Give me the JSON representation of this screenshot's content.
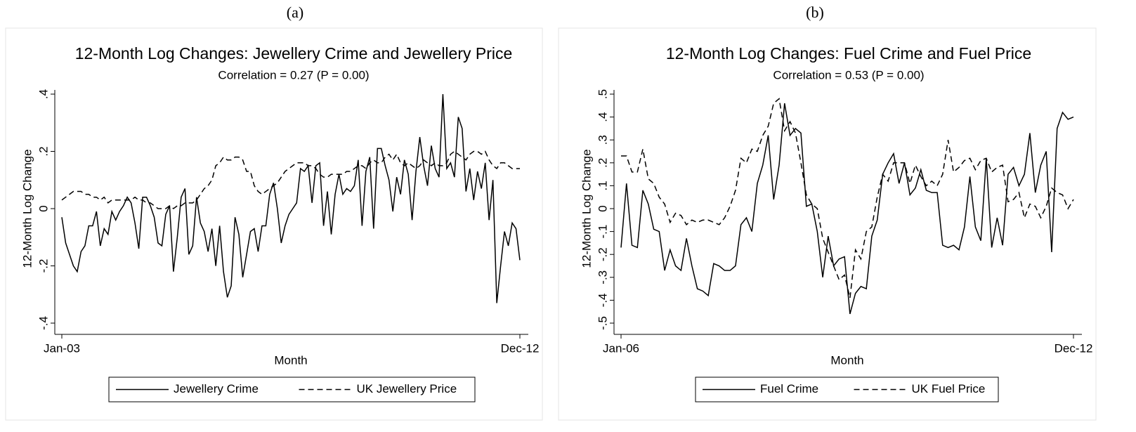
{
  "chart_data": [
    {
      "type": "line",
      "panel_label": "(a)",
      "title": "12-Month Log Changes: Jewellery Crime and Jewellery Price",
      "subtitle": "Correlation = 0.27 (P = 0.00)",
      "xlabel": "Month",
      "ylabel": "12-Month Log Change",
      "categories": [
        "Jan-03",
        null,
        null,
        null,
        null,
        null,
        null,
        null,
        null,
        null,
        null,
        null,
        null,
        null,
        null,
        null,
        null,
        null,
        null,
        null,
        null,
        null,
        null,
        null,
        null,
        null,
        null,
        null,
        null,
        null,
        null,
        null,
        null,
        null,
        null,
        null,
        null,
        null,
        null,
        null,
        null,
        null,
        null,
        null,
        null,
        null,
        null,
        null,
        null,
        null,
        null,
        null,
        null,
        null,
        null,
        null,
        null,
        null,
        null,
        null,
        null,
        null,
        null,
        null,
        null,
        null,
        null,
        null,
        null,
        null,
        null,
        null,
        null,
        null,
        null,
        null,
        null,
        null,
        null,
        null,
        null,
        null,
        null,
        null,
        null,
        null,
        null,
        null,
        null,
        null,
        null,
        null,
        null,
        null,
        null,
        null,
        null,
        null,
        null,
        null,
        null,
        null,
        null,
        null,
        null,
        null,
        null,
        null,
        null,
        null,
        null,
        null,
        null,
        null,
        null,
        null,
        null,
        null,
        null,
        "Dec-12"
      ],
      "ylim": [
        -0.4,
        0.4
      ],
      "yticks": [
        {
          "value": -0.4,
          "label": "-.4"
        },
        {
          "value": -0.2,
          "label": "-.2"
        },
        0,
        {
          "value": 0.2,
          "label": ".2"
        },
        {
          "value": 0.4,
          "label": ".4"
        }
      ],
      "grid": false,
      "legend": "bottom",
      "series": [
        {
          "name": "Jewellery Crime",
          "color": "#000000",
          "dash": "solid",
          "values": [
            -0.03,
            -0.12,
            -0.16,
            -0.2,
            -0.22,
            -0.15,
            -0.13,
            -0.06,
            -0.06,
            -0.01,
            -0.13,
            -0.07,
            -0.09,
            -0.01,
            -0.04,
            -0.01,
            0.01,
            0.04,
            0.02,
            -0.05,
            -0.14,
            0.04,
            0.04,
            0.01,
            -0.03,
            -0.12,
            -0.13,
            -0.02,
            0.01,
            -0.22,
            -0.1,
            0.04,
            0.07,
            -0.16,
            -0.13,
            0.04,
            -0.05,
            -0.08,
            -0.15,
            -0.07,
            -0.2,
            -0.06,
            -0.22,
            -0.31,
            -0.27,
            -0.03,
            -0.09,
            -0.24,
            -0.16,
            -0.08,
            -0.07,
            -0.15,
            -0.06,
            -0.06,
            0.05,
            0.09,
            0.0,
            -0.12,
            -0.06,
            -0.02,
            0.0,
            0.02,
            0.14,
            0.13,
            0.15,
            0.02,
            0.15,
            0.16,
            -0.06,
            0.06,
            -0.09,
            0.05,
            0.12,
            0.05,
            0.07,
            0.06,
            0.08,
            0.17,
            -0.06,
            0.13,
            0.18,
            -0.07,
            0.21,
            0.21,
            0.15,
            0.1,
            -0.01,
            0.11,
            0.05,
            0.17,
            0.12,
            -0.04,
            0.13,
            0.25,
            0.15,
            0.08,
            0.22,
            0.14,
            0.11,
            0.4,
            0.14,
            0.16,
            0.11,
            0.32,
            0.28,
            0.06,
            0.14,
            0.03,
            0.13,
            0.07,
            0.16,
            -0.04,
            0.1,
            -0.33,
            -0.2,
            -0.08,
            -0.13,
            -0.05,
            -0.07,
            -0.18
          ]
        },
        {
          "name": "UK Jewellery Price",
          "color": "#000000",
          "dash": "dashed",
          "values": [
            0.03,
            0.04,
            0.05,
            0.06,
            0.06,
            0.06,
            0.05,
            0.05,
            0.04,
            0.04,
            0.03,
            0.04,
            0.02,
            0.03,
            0.03,
            0.03,
            0.03,
            0.03,
            0.03,
            0.04,
            0.03,
            0.03,
            0.02,
            0.02,
            0.01,
            0.0,
            0.0,
            0.0,
            0.01,
            0.0,
            0.01,
            0.01,
            0.02,
            0.02,
            0.02,
            0.03,
            0.05,
            0.07,
            0.08,
            0.1,
            0.15,
            0.16,
            0.18,
            0.17,
            0.17,
            0.18,
            0.18,
            0.17,
            0.13,
            0.13,
            0.08,
            0.06,
            0.05,
            0.06,
            0.07,
            0.08,
            0.09,
            0.11,
            0.13,
            0.14,
            0.15,
            0.16,
            0.16,
            0.16,
            0.15,
            0.15,
            0.14,
            0.12,
            0.11,
            0.11,
            0.12,
            0.12,
            0.12,
            0.12,
            0.13,
            0.13,
            0.14,
            0.15,
            0.15,
            0.14,
            0.16,
            0.17,
            0.16,
            0.16,
            0.18,
            0.19,
            0.17,
            0.19,
            0.16,
            0.15,
            0.16,
            0.15,
            0.14,
            0.15,
            0.17,
            0.16,
            0.15,
            0.16,
            0.15,
            0.15,
            0.16,
            0.19,
            0.2,
            0.19,
            0.18,
            0.17,
            0.19,
            0.2,
            0.2,
            0.19,
            0.2,
            0.17,
            0.15,
            0.14,
            0.16,
            0.16,
            0.15,
            0.14,
            0.14,
            0.14
          ]
        }
      ]
    },
    {
      "type": "line",
      "panel_label": "(b)",
      "title": "12-Month Log Changes: Fuel Crime and Fuel Price",
      "subtitle": "Correlation = 0.53 (P = 0.00)",
      "xlabel": "Month",
      "ylabel": "12-Month Log Change",
      "categories": [
        "Jan-06",
        null,
        null,
        null,
        null,
        null,
        null,
        null,
        null,
        null,
        null,
        null,
        null,
        null,
        null,
        null,
        null,
        null,
        null,
        null,
        null,
        null,
        null,
        null,
        null,
        null,
        null,
        null,
        null,
        null,
        null,
        null,
        null,
        null,
        null,
        null,
        null,
        null,
        null,
        null,
        null,
        null,
        null,
        null,
        null,
        null,
        null,
        null,
        null,
        null,
        null,
        null,
        null,
        null,
        null,
        null,
        null,
        null,
        null,
        null,
        null,
        null,
        null,
        null,
        null,
        null,
        null,
        null,
        null,
        null,
        null,
        null,
        null,
        null,
        null,
        null,
        null,
        null,
        null,
        null,
        null,
        null,
        null,
        "Dec-12"
      ],
      "ylim": [
        -0.5,
        0.5
      ],
      "yticks": [
        {
          "value": -0.5,
          "label": "-.5"
        },
        {
          "value": -0.4,
          "label": "-.4"
        },
        {
          "value": -0.3,
          "label": "-.3"
        },
        {
          "value": -0.2,
          "label": "-.2"
        },
        {
          "value": -0.1,
          "label": "-.1"
        },
        0,
        {
          "value": 0.1,
          "label": ".1"
        },
        {
          "value": 0.2,
          "label": ".2"
        },
        {
          "value": 0.3,
          "label": ".3"
        },
        {
          "value": 0.4,
          "label": ".4"
        },
        {
          "value": 0.5,
          "label": ".5"
        }
      ],
      "grid": false,
      "legend": "bottom",
      "series": [
        {
          "name": "Fuel Crime",
          "color": "#000000",
          "dash": "solid",
          "values": [
            -0.17,
            0.11,
            -0.16,
            -0.17,
            0.08,
            0.02,
            -0.09,
            -0.1,
            -0.27,
            -0.18,
            -0.25,
            -0.27,
            -0.13,
            -0.25,
            -0.35,
            -0.36,
            -0.38,
            -0.24,
            -0.25,
            -0.27,
            -0.27,
            -0.25,
            -0.07,
            -0.04,
            -0.1,
            0.11,
            0.19,
            0.32,
            0.04,
            0.19,
            0.46,
            0.32,
            0.35,
            0.33,
            0.01,
            0.02,
            -0.1,
            -0.3,
            -0.12,
            -0.25,
            -0.22,
            -0.21,
            -0.46,
            -0.37,
            -0.34,
            -0.35,
            -0.12,
            -0.05,
            0.15,
            0.2,
            0.24,
            0.11,
            0.2,
            0.06,
            0.09,
            0.17,
            0.08,
            0.07,
            0.07,
            -0.16,
            -0.17,
            -0.16,
            -0.18,
            -0.08,
            0.14,
            -0.08,
            -0.14,
            0.22,
            -0.17,
            -0.04,
            -0.16,
            0.15,
            0.18,
            0.1,
            0.15,
            0.33,
            0.07,
            0.19,
            0.25,
            -0.19,
            0.35,
            0.42,
            0.39,
            0.4
          ]
        },
        {
          "name": "UK Fuel Price",
          "color": "#000000",
          "dash": "dashed",
          "values": [
            0.23,
            0.23,
            0.16,
            0.16,
            0.26,
            0.13,
            0.11,
            0.05,
            0.02,
            -0.06,
            -0.02,
            -0.03,
            -0.07,
            -0.05,
            -0.06,
            -0.05,
            -0.05,
            -0.06,
            -0.07,
            -0.04,
            0.01,
            0.08,
            0.22,
            0.2,
            0.26,
            0.25,
            0.32,
            0.36,
            0.46,
            0.48,
            0.34,
            0.38,
            0.33,
            0.2,
            0.06,
            0.02,
            0.0,
            -0.13,
            -0.19,
            -0.25,
            -0.31,
            -0.29,
            -0.39,
            -0.18,
            -0.22,
            -0.1,
            -0.08,
            0.05,
            0.15,
            0.12,
            0.2,
            0.2,
            0.2,
            0.11,
            0.19,
            0.14,
            0.1,
            0.12,
            0.1,
            0.15,
            0.3,
            0.16,
            0.18,
            0.21,
            0.22,
            0.17,
            0.21,
            0.22,
            0.16,
            0.18,
            0.19,
            0.03,
            0.04,
            0.07,
            -0.04,
            0.02,
            0.01,
            -0.04,
            0.01,
            0.09,
            0.07,
            0.06,
            0.0,
            0.04
          ]
        }
      ]
    }
  ]
}
